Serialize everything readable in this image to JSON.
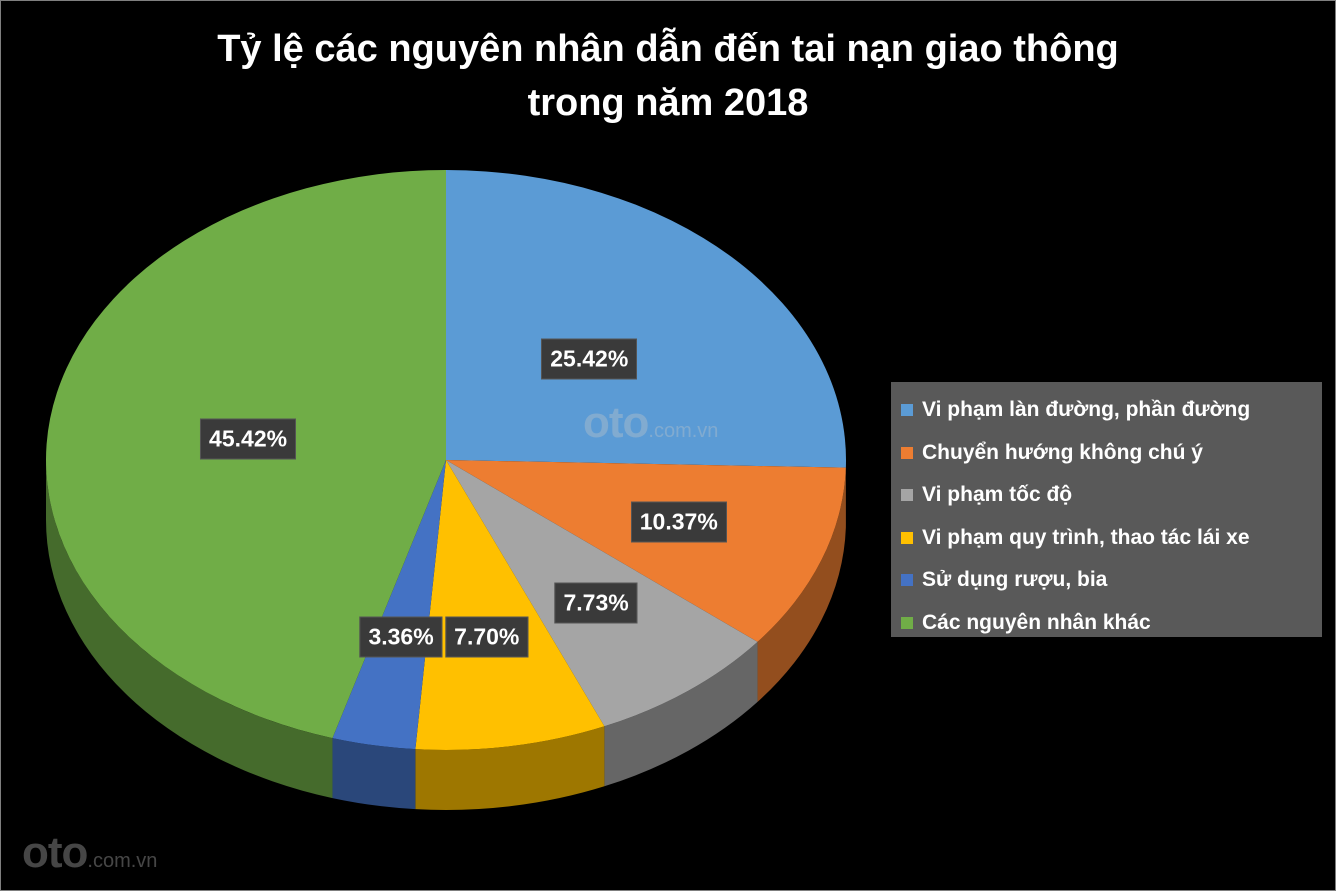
{
  "chart_data": {
    "type": "pie",
    "title_lines": [
      "Tỷ lệ các nguyên nhân dẫn đến tai nạn giao thông",
      "trong năm 2018"
    ],
    "slices": [
      {
        "name": "Vi phạm làn đường, phần đường",
        "value": 25.42,
        "label": "25.42%",
        "color": "#5b9bd5"
      },
      {
        "name": "Chuyển hướng không chú ý",
        "value": 10.37,
        "label": "10.37%",
        "color": "#ed7d31"
      },
      {
        "name": "Vi phạm tốc độ",
        "value": 7.73,
        "label": "7.73%",
        "color": "#a5a5a5"
      },
      {
        "name": "Vi phạm quy trình, thao tác lái xe",
        "value": 7.7,
        "label": "7.70%",
        "color": "#ffc000"
      },
      {
        "name": "Sử dụng rượu, bia",
        "value": 3.36,
        "label": "3.36%",
        "color": "#4472c4"
      },
      {
        "name": "Các nguyên nhân khác",
        "value": 45.42,
        "label": "45.42%",
        "color": "#70ad47"
      }
    ],
    "legend_position": "right",
    "style": "3d-pie"
  },
  "watermark": {
    "brand": "oto",
    "domain": ".com.vn"
  }
}
